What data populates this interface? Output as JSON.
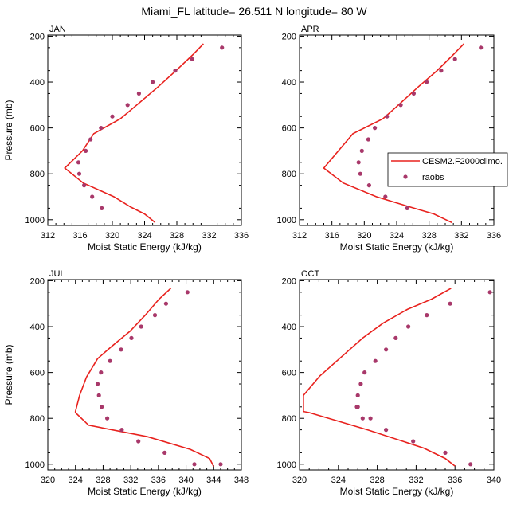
{
  "title": "Miami_FL  latitude= 26.511 N longitude= 80 W",
  "legend": {
    "model_label": "CESM2.F2000climo.",
    "obs_label": "raobs",
    "model_color": "#e8221e",
    "obs_color": "#a8386a"
  },
  "chart_data": [
    {
      "type": "line",
      "panel": "JAN",
      "xlabel": "Moist Static Energy (kJ/kg)",
      "ylabel": "Pressure (mb)",
      "xlim": [
        312,
        336
      ],
      "ylim": [
        1025,
        195
      ],
      "x_ticks": [
        "312",
        "316",
        "320",
        "324",
        "328",
        "332",
        "336"
      ],
      "y_ticks": [
        "200",
        "400",
        "600",
        "800",
        "1000"
      ],
      "series": [
        {
          "kind": "model",
          "x": [
            331.3,
            330.0,
            327.9,
            325.7,
            322.7,
            321.0,
            317.7,
            316.3,
            314.1,
            316.4,
            320.2,
            322.3,
            324.0,
            325.3
          ],
          "y": [
            233,
            280,
            350,
            420,
            510,
            560,
            625,
            700,
            775,
            840,
            900,
            945,
            975,
            1012
          ]
        },
        {
          "kind": "obs",
          "x": [
            333.6,
            329.9,
            327.8,
            325.0,
            323.3,
            321.9,
            320.0,
            318.6,
            317.3,
            316.7,
            315.8,
            315.9,
            316.5,
            317.5,
            318.7
          ],
          "y": [
            250,
            300,
            350,
            400,
            450,
            500,
            550,
            600,
            650,
            700,
            750,
            800,
            850,
            900,
            950
          ]
        }
      ]
    },
    {
      "type": "line",
      "panel": "APR",
      "xlabel": "Moist Static Energy (kJ/kg)",
      "ylabel": "",
      "xlim": [
        312,
        336
      ],
      "ylim": [
        1025,
        195
      ],
      "x_ticks": [
        "312",
        "316",
        "320",
        "324",
        "328",
        "332",
        "336"
      ],
      "y_ticks": [
        "200",
        "400",
        "600",
        "800",
        "1000"
      ],
      "series": [
        {
          "kind": "model",
          "x": [
            332.3,
            331.0,
            329.0,
            326.7,
            323.9,
            322.3,
            318.6,
            316.8,
            315.0,
            317.4,
            321.5,
            325.7,
            328.6,
            330.8
          ],
          "y": [
            233,
            280,
            350,
            420,
            510,
            560,
            625,
            700,
            775,
            840,
            900,
            945,
            975,
            1012
          ]
        },
        {
          "kind": "obs",
          "x": [
            334.4,
            331.2,
            329.5,
            327.7,
            326.1,
            324.5,
            322.8,
            321.3,
            320.5,
            319.7,
            319.3,
            319.5,
            320.6,
            322.6,
            325.3
          ],
          "y": [
            250,
            300,
            350,
            400,
            450,
            500,
            550,
            600,
            650,
            700,
            750,
            800,
            850,
            900,
            950
          ]
        }
      ]
    },
    {
      "type": "line",
      "panel": "JUL",
      "xlabel": "Moist Static Energy (kJ/kg)",
      "ylabel": "Pressure (mb)",
      "xlim": [
        320,
        348
      ],
      "ylim": [
        1025,
        195
      ],
      "x_ticks": [
        "320",
        "324",
        "328",
        "332",
        "336",
        "340",
        "344",
        "348"
      ],
      "y_ticks": [
        "200",
        "400",
        "600",
        "800",
        "1000"
      ],
      "series": [
        {
          "kind": "model",
          "x": [
            337.8,
            336.1,
            334.1,
            331.9,
            329.1,
            327.2,
            325.6,
            324.6,
            324.0,
            324.0,
            325.9,
            334.4,
            340.6,
            343.4,
            344.0
          ],
          "y": [
            233,
            280,
            350,
            420,
            490,
            540,
            620,
            700,
            770,
            775,
            830,
            880,
            935,
            975,
            1010
          ]
        },
        {
          "kind": "obs",
          "x": [
            340.2,
            337.1,
            335.5,
            333.5,
            332.1,
            330.6,
            329.0,
            327.7,
            327.2,
            327.4,
            327.8,
            328.6,
            330.7,
            333.1,
            336.9,
            341.2,
            345.0
          ],
          "y": [
            250,
            300,
            350,
            400,
            450,
            500,
            550,
            600,
            650,
            700,
            750,
            800,
            850,
            900,
            950,
            1000,
            1000
          ]
        }
      ]
    },
    {
      "type": "line",
      "panel": "OCT",
      "xlabel": "Moist Static Energy (kJ/kg)",
      "ylabel": "",
      "xlim": [
        320,
        340
      ],
      "ylim": [
        1025,
        195
      ],
      "x_ticks": [
        "320",
        "324",
        "328",
        "332",
        "336",
        "340"
      ],
      "y_ticks": [
        "200",
        "400",
        "600",
        "800",
        "1000"
      ],
      "series": [
        {
          "kind": "model",
          "x": [
            335.6,
            333.6,
            331.1,
            328.6,
            326.5,
            324.9,
            322.1,
            320.4,
            320.4,
            321.0,
            327.0,
            332.8,
            335.0,
            336.0
          ],
          "y": [
            233,
            280,
            325,
            385,
            450,
            510,
            615,
            700,
            770,
            775,
            850,
            930,
            975,
            1008
          ]
        },
        {
          "kind": "obs",
          "x": [
            339.6,
            335.5,
            333.1,
            331.2,
            329.9,
            328.9,
            327.8,
            326.7,
            326.3,
            326.0,
            325.9,
            326.0,
            326.5,
            327.3,
            328.9,
            331.7,
            335.0,
            337.6
          ],
          "y": [
            250,
            300,
            350,
            400,
            450,
            500,
            550,
            600,
            650,
            700,
            750,
            750,
            800,
            800,
            850,
            900,
            950,
            1000
          ]
        }
      ]
    }
  ]
}
